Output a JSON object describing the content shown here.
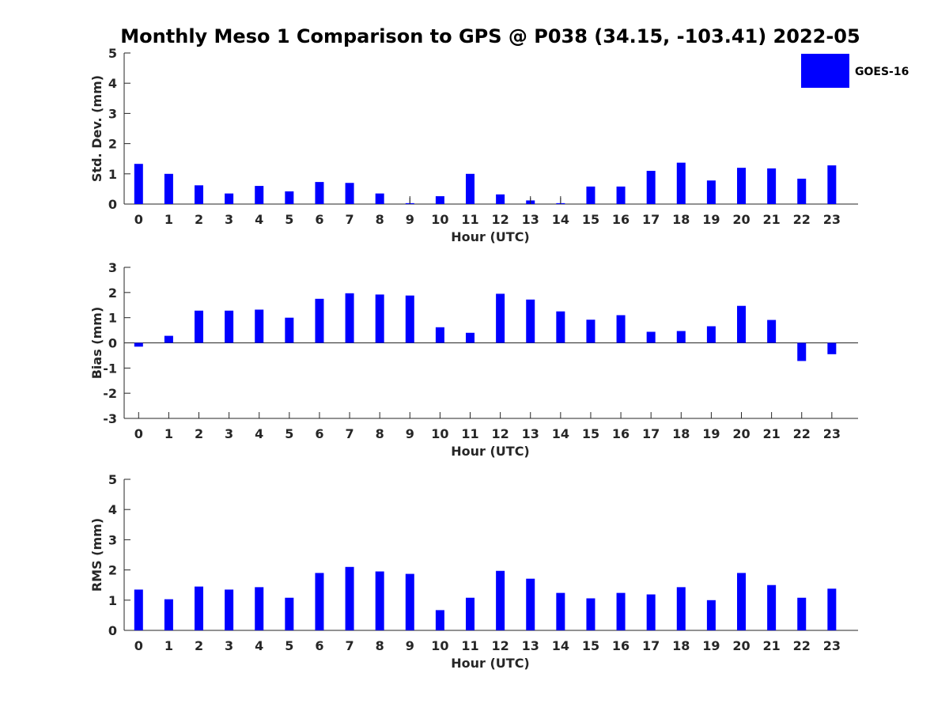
{
  "figure": {
    "title": "Monthly Meso 1 Comparison to GPS @ P038 (34.15, -103.41) 2022-05",
    "legend": {
      "label": "GOES-16",
      "color": "#0000ff",
      "placement": "top-right"
    }
  },
  "chart_data": [
    {
      "type": "bar",
      "categories": [
        "0",
        "1",
        "2",
        "3",
        "4",
        "5",
        "6",
        "7",
        "8",
        "9",
        "10",
        "11",
        "12",
        "13",
        "14",
        "15",
        "16",
        "17",
        "18",
        "19",
        "20",
        "21",
        "22",
        "23"
      ],
      "series": [
        {
          "name": "GOES-16",
          "color": "#0000ff",
          "values": [
            1.33,
            1.0,
            0.62,
            0.35,
            0.6,
            0.42,
            0.73,
            0.7,
            0.35,
            0.03,
            0.26,
            1.0,
            0.32,
            0.12,
            0.03,
            0.58,
            0.58,
            1.1,
            1.37,
            0.78,
            1.2,
            1.18,
            0.84,
            1.28
          ]
        }
      ],
      "error_markers": [
        "9",
        "13",
        "14"
      ],
      "xlabel": "Hour (UTC)",
      "ylabel": "Std. Dev. (mm)",
      "ylim": [
        0,
        5
      ],
      "yticks": [
        "0",
        "1",
        "2",
        "3",
        "4",
        "5"
      ],
      "grid": false
    },
    {
      "type": "bar",
      "categories": [
        "0",
        "1",
        "2",
        "3",
        "4",
        "5",
        "6",
        "7",
        "8",
        "9",
        "10",
        "11",
        "12",
        "13",
        "14",
        "15",
        "16",
        "17",
        "18",
        "19",
        "20",
        "21",
        "22",
        "23"
      ],
      "series": [
        {
          "name": "GOES-16",
          "color": "#0000ff",
          "values": [
            -0.15,
            0.28,
            1.28,
            1.28,
            1.32,
            1.0,
            1.75,
            1.97,
            1.92,
            1.88,
            0.62,
            0.4,
            1.95,
            1.72,
            1.25,
            0.92,
            1.1,
            0.44,
            0.47,
            0.66,
            1.47,
            0.91,
            -0.72,
            -0.45
          ]
        }
      ],
      "xlabel": "Hour (UTC)",
      "ylabel": "Bias (mm)",
      "ylim": [
        -3,
        3
      ],
      "yticks": [
        "-3",
        "-2",
        "-1",
        "0",
        "1",
        "2",
        "3"
      ],
      "zero_line": true,
      "grid": false
    },
    {
      "type": "bar",
      "categories": [
        "0",
        "1",
        "2",
        "3",
        "4",
        "5",
        "6",
        "7",
        "8",
        "9",
        "10",
        "11",
        "12",
        "13",
        "14",
        "15",
        "16",
        "17",
        "18",
        "19",
        "20",
        "21",
        "22",
        "23"
      ],
      "series": [
        {
          "name": "GOES-16",
          "color": "#0000ff",
          "values": [
            1.35,
            1.03,
            1.45,
            1.35,
            1.43,
            1.08,
            1.9,
            2.1,
            1.95,
            1.87,
            0.67,
            1.08,
            1.97,
            1.71,
            1.24,
            1.06,
            1.24,
            1.19,
            1.43,
            1.0,
            1.9,
            1.5,
            1.08,
            1.38
          ]
        }
      ],
      "xlabel": "Hour (UTC)",
      "ylabel": "RMS (mm)",
      "ylim": [
        0,
        5
      ],
      "yticks": [
        "0",
        "1",
        "2",
        "3",
        "4",
        "5"
      ],
      "grid": false
    }
  ]
}
